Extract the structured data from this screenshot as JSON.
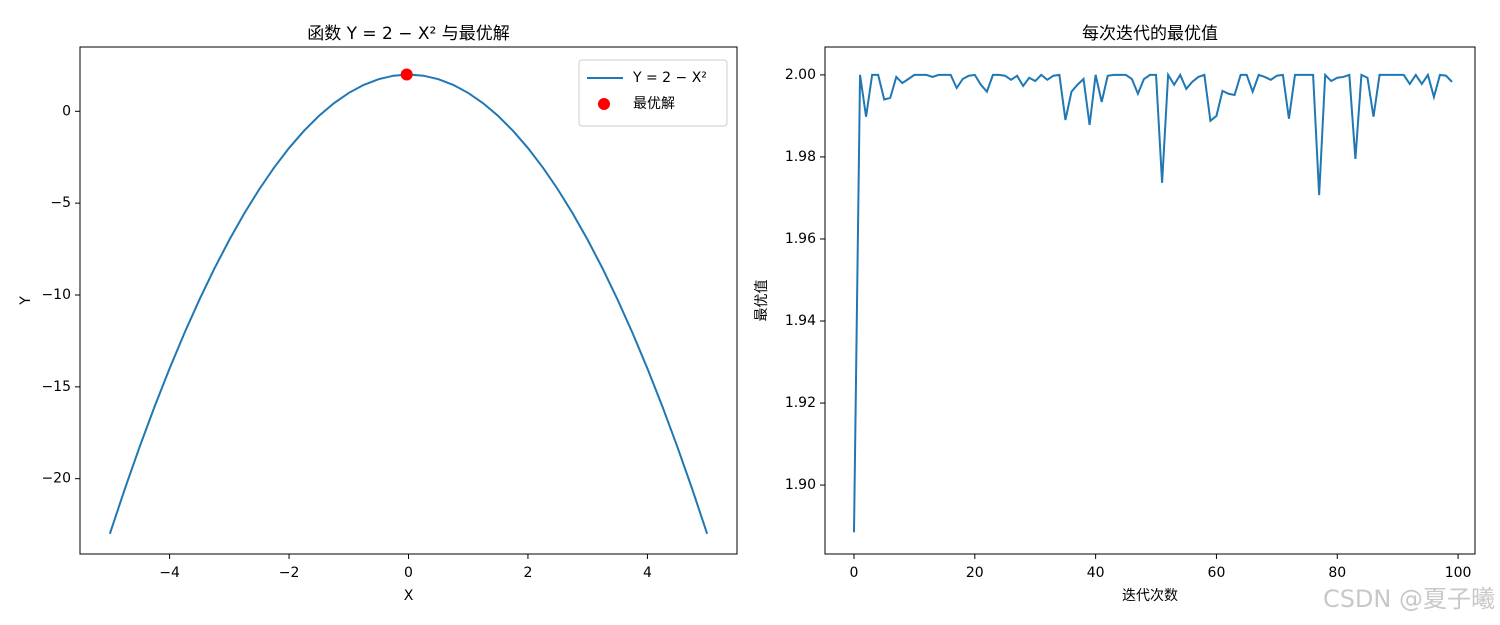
{
  "chart_data": [
    {
      "type": "line",
      "title": "函数 Y = 2 − X² 与最优解",
      "xlabel": "X",
      "ylabel": "Y",
      "series": [
        {
          "name": "Y = 2 − X²",
          "color": "#1f77b4",
          "x": [
            -5,
            -4.75,
            -4.5,
            -4.25,
            -4,
            -3.75,
            -3.5,
            -3.25,
            -3,
            -2.75,
            -2.5,
            -2.25,
            -2,
            -1.75,
            -1.5,
            -1.25,
            -1,
            -0.75,
            -0.5,
            -0.25,
            0,
            0.25,
            0.5,
            0.75,
            1,
            1.25,
            1.5,
            1.75,
            2,
            2.25,
            2.5,
            2.75,
            3,
            3.25,
            3.5,
            3.75,
            4,
            4.25,
            4.5,
            4.75,
            5
          ],
          "values": [
            -23,
            -20.5625,
            -18.25,
            -16.0625,
            -14,
            -12.0625,
            -10.25,
            -8.5625,
            -7,
            -5.5625,
            -4.25,
            -3.0625,
            -2,
            -1.0625,
            -0.25,
            0.4375,
            1,
            1.4375,
            1.75,
            1.9375,
            2,
            1.9375,
            1.75,
            1.4375,
            1,
            0.4375,
            -0.25,
            -1.0625,
            -2,
            -3.0625,
            -4.25,
            -5.5625,
            -7,
            -8.5625,
            -10.25,
            -12.0625,
            -14,
            -16.0625,
            -18.25,
            -20.5625,
            -23
          ]
        },
        {
          "name": "最优解",
          "type": "scatter",
          "color": "#ff0000",
          "x": [
            -0.03
          ],
          "values": [
            2.0
          ]
        }
      ],
      "xlim": [
        -5.5,
        5.5
      ],
      "xticks": [
        {
          "value": -4,
          "label": "−4"
        },
        {
          "value": -2,
          "label": "−2"
        },
        0,
        2,
        4
      ],
      "ylim": [
        -24.1,
        3.5
      ],
      "yticks": [
        0,
        {
          "value": -5,
          "label": "−5"
        },
        {
          "value": -10,
          "label": "−10"
        },
        {
          "value": -15,
          "label": "−15"
        },
        {
          "value": -20,
          "label": "−20"
        }
      ],
      "legend": "upper right"
    },
    {
      "type": "line",
      "title": "每次迭代的最优值",
      "xlabel": "迭代次数",
      "ylabel": "最优值",
      "x": [
        0,
        1,
        2,
        3,
        4,
        5,
        6,
        7,
        8,
        9,
        10,
        11,
        12,
        13,
        14,
        15,
        16,
        17,
        18,
        19,
        20,
        21,
        22,
        23,
        24,
        25,
        26,
        27,
        28,
        29,
        30,
        31,
        32,
        33,
        34,
        35,
        36,
        37,
        38,
        39,
        40,
        41,
        42,
        43,
        44,
        45,
        46,
        47,
        48,
        49,
        50,
        51,
        52,
        53,
        54,
        55,
        56,
        57,
        58,
        59,
        60,
        61,
        62,
        63,
        64,
        65,
        66,
        67,
        68,
        69,
        70,
        71,
        72,
        73,
        74,
        75,
        76,
        77,
        78,
        79,
        80,
        81,
        82,
        83,
        84,
        85,
        86,
        87,
        88,
        89,
        90,
        91,
        92,
        93,
        94,
        95,
        96,
        97,
        98,
        99
      ],
      "series": [
        {
          "color": "#1f77b4",
          "values": [
            1.8885,
            2.0,
            1.9898,
            2.0,
            2.0,
            1.994,
            1.9944,
            1.9995,
            1.998,
            1.999,
            2.0,
            2.0,
            2.0,
            1.9995,
            2.0,
            2.0,
            2.0,
            1.9968,
            1.999,
            1.9998,
            2.0,
            1.9976,
            1.9959,
            2.0,
            2.0,
            1.9998,
            1.9988,
            1.9998,
            1.9973,
            1.9993,
            1.9985,
            2.0,
            1.9988,
            1.9998,
            2.0,
            1.989,
            1.9959,
            1.9976,
            1.999,
            1.9878,
            2.0,
            1.9934,
            1.9998,
            2.0,
            2.0,
            2.0,
            1.999,
            1.9954,
            1.999,
            2.0,
            2.0,
            1.9737,
            2.0,
            1.9976,
            2.0,
            1.9966,
            1.9983,
            1.9995,
            2.0,
            1.9888,
            1.99,
            1.9961,
            1.9954,
            1.9951,
            2.0,
            2.0,
            1.9959,
            2.0,
            1.9995,
            1.9988,
            1.9998,
            2.0,
            1.9893,
            2.0,
            2.0,
            2.0,
            2.0,
            1.9707,
            2.0,
            1.9985,
            1.9993,
            1.9995,
            2.0,
            1.9795,
            2.0,
            1.9993,
            1.9898,
            2.0,
            2.0,
            2.0,
            2.0,
            2.0,
            1.9978,
            2.0,
            1.9978,
            2.0,
            1.9946,
            2.0,
            1.9998,
            1.9983
          ]
        }
      ],
      "xlim": [
        -4.8,
        102.8
      ],
      "xticks": [
        0,
        20,
        40,
        60,
        80,
        100
      ],
      "ylim": [
        1.8832,
        2.0068
      ],
      "yticks": [
        {
          "value": 1.9,
          "label": "1.90"
        },
        1.92,
        1.94,
        1.96,
        1.98,
        {
          "value": 2.0,
          "label": "2.00"
        }
      ]
    }
  ],
  "watermark": "CSDN @夏子曦"
}
